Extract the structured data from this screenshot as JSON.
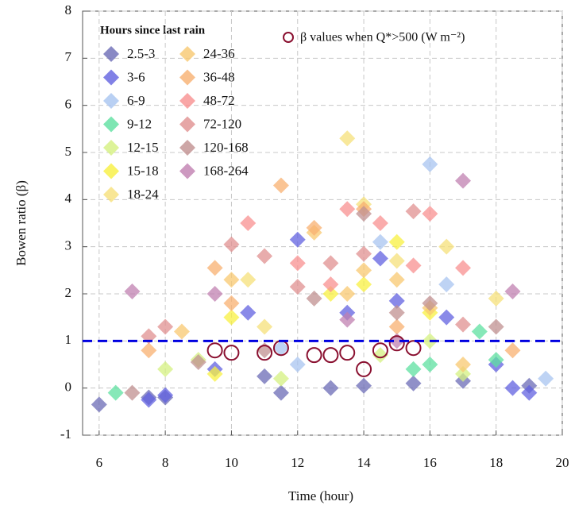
{
  "chart_data": {
    "type": "scatter",
    "xlabel": "Time (hour)",
    "ylabel": "Bowen ratio  (β)",
    "legend_title": "Hours since last rain",
    "xlim": [
      5.5,
      20
    ],
    "xticks": [
      6,
      8,
      10,
      12,
      14,
      16,
      18,
      20
    ],
    "ylim": [
      -1,
      8
    ],
    "yticks": [
      -1,
      0,
      1,
      2,
      3,
      4,
      5,
      6,
      7,
      8
    ],
    "grid": true,
    "hline": 1,
    "hline_color": "#0000e0",
    "series": [
      {
        "name": "2.5-3",
        "color": "#6b6bb5",
        "x": [
          6,
          7.5,
          8,
          11,
          11.5,
          13,
          14,
          15.5,
          17,
          19
        ],
        "values": [
          -0.35,
          -0.2,
          -0.2,
          0.25,
          -0.1,
          0.0,
          0.05,
          0.1,
          0.15,
          0.05
        ]
      },
      {
        "name": "3-6",
        "color": "#6262e0",
        "x": [
          7.5,
          8,
          9.5,
          10.5,
          12,
          13.5,
          14.5,
          15,
          16.5,
          18,
          18.5,
          19
        ],
        "values": [
          -0.25,
          -0.15,
          0.4,
          1.6,
          3.15,
          1.6,
          2.75,
          1.85,
          1.5,
          0.5,
          0.0,
          -0.1
        ]
      },
      {
        "name": "6-9",
        "color": "#a8c4f0",
        "x": [
          11.5,
          12,
          14.5,
          16,
          16.5,
          19.5
        ],
        "values": [
          0.85,
          0.5,
          3.1,
          4.75,
          2.2,
          0.2
        ]
      },
      {
        "name": "9-12",
        "color": "#5ee0a0",
        "x": [
          6.5,
          15.5,
          16,
          17.5,
          18
        ],
        "values": [
          -0.1,
          0.4,
          0.5,
          1.2,
          0.6
        ]
      },
      {
        "name": "12-15",
        "color": "#d4f080",
        "x": [
          8,
          9,
          11.5,
          14.5,
          16,
          17
        ],
        "values": [
          0.4,
          0.6,
          0.2,
          0.7,
          1.0,
          0.3
        ]
      },
      {
        "name": "15-18",
        "color": "#f8f040",
        "x": [
          9.5,
          10,
          13,
          14,
          15,
          16
        ],
        "values": [
          0.3,
          1.5,
          2.0,
          2.2,
          3.1,
          1.6
        ]
      },
      {
        "name": "18-24",
        "color": "#f6e07a",
        "x": [
          10.5,
          11,
          13.5,
          14,
          15,
          16.5,
          18
        ],
        "values": [
          2.3,
          1.3,
          5.3,
          3.9,
          2.7,
          3.0,
          1.9
        ]
      },
      {
        "name": "24-36",
        "color": "#f8c870",
        "x": [
          8.5,
          10,
          12.5,
          13.5,
          14,
          15,
          16,
          17
        ],
        "values": [
          1.2,
          2.3,
          3.3,
          2.0,
          2.5,
          2.3,
          1.7,
          0.5
        ]
      },
      {
        "name": "36-48",
        "color": "#f8b070",
        "x": [
          7.5,
          9.5,
          10,
          11.5,
          12.5,
          14,
          15,
          18.5
        ],
        "values": [
          0.8,
          2.55,
          1.8,
          4.3,
          3.4,
          3.8,
          1.3,
          0.8
        ]
      },
      {
        "name": "48-72",
        "color": "#f89090",
        "x": [
          10.5,
          12,
          13,
          13.5,
          14.5,
          15.5,
          16,
          17
        ],
        "values": [
          3.5,
          2.65,
          2.2,
          3.8,
          3.5,
          2.6,
          3.7,
          2.55
        ]
      },
      {
        "name": "72-120",
        "color": "#e09090",
        "x": [
          7.5,
          8,
          10,
          11,
          12,
          13,
          14,
          15.5,
          17
        ],
        "values": [
          1.1,
          1.3,
          3.05,
          2.8,
          2.15,
          2.65,
          2.85,
          3.75,
          1.35
        ]
      },
      {
        "name": "120-168",
        "color": "#c09090",
        "x": [
          7,
          9,
          11,
          12.5,
          14,
          15,
          16,
          18
        ],
        "values": [
          -0.1,
          0.55,
          0.8,
          1.9,
          3.7,
          1.6,
          1.8,
          1.3
        ]
      },
      {
        "name": "168-264",
        "color": "#c080b0",
        "x": [
          7,
          9.5,
          13.5,
          15,
          17,
          18.5
        ],
        "values": [
          2.05,
          2.0,
          1.45,
          1.0,
          4.4,
          2.05
        ]
      },
      {
        "name": "β values when Q*>500 (W m⁻²)",
        "color": "#8a1030",
        "marker": "circle",
        "x": [
          9.5,
          10,
          11,
          11.5,
          12.5,
          13,
          13.5,
          14,
          14.5,
          15,
          15.5
        ],
        "values": [
          0.8,
          0.75,
          0.75,
          0.85,
          0.7,
          0.7,
          0.75,
          0.4,
          0.8,
          0.95,
          0.85
        ]
      }
    ]
  }
}
